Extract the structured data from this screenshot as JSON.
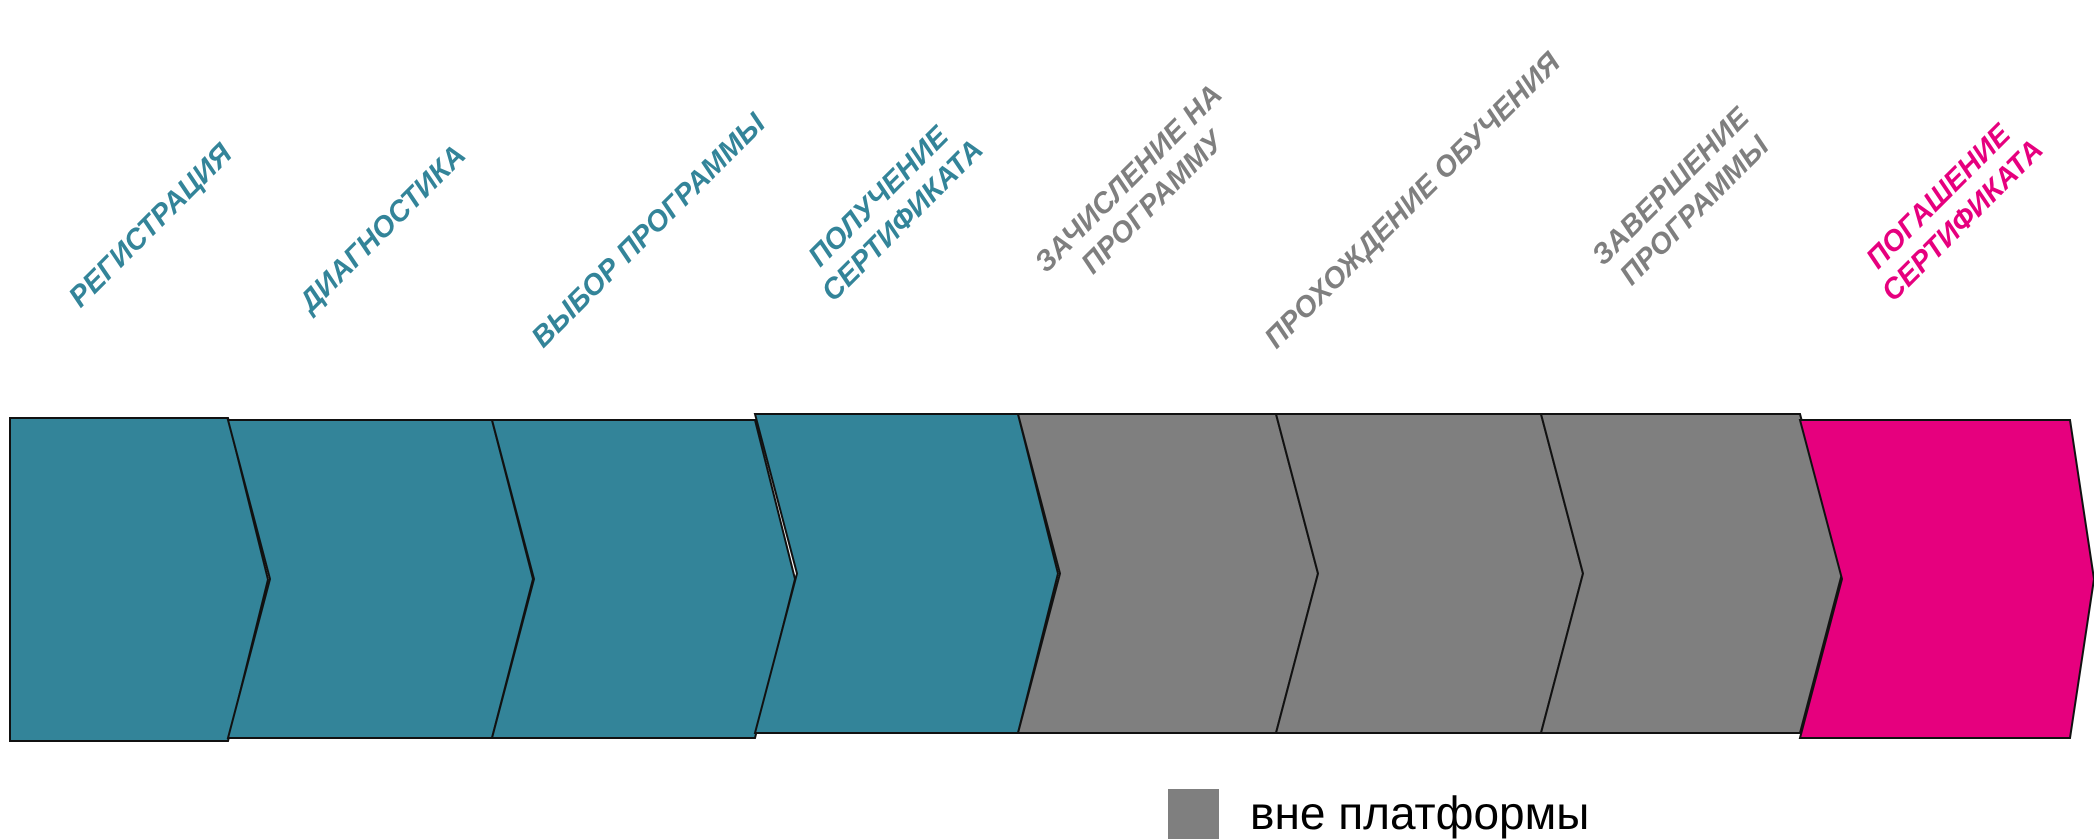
{
  "colors": {
    "teal": "#338499",
    "gray": "#7f7f7f",
    "magenta": "#e6007e",
    "outline": "#111111"
  },
  "steps": [
    {
      "label": "РЕГИСТРАЦИЯ",
      "lines": [
        "РЕГИСТРАЦИЯ"
      ],
      "color": "teal"
    },
    {
      "label": "ДИАГНОСТИКА",
      "lines": [
        "ДИАГНОСТИКА"
      ],
      "color": "teal"
    },
    {
      "label": "ВЫБОР ПРОГРАММЫ",
      "lines": [
        "ВЫБОР ПРОГРАММЫ"
      ],
      "color": "teal"
    },
    {
      "label": "ПОЛУЧЕНИЕ СЕРТИФИКАТА",
      "lines": [
        "ПОЛУЧЕНИЕ",
        "СЕРТИФИКАТА"
      ],
      "color": "teal"
    },
    {
      "label": "ЗАЧИСЛЕНИЕ НА ПРОГРАММУ",
      "lines": [
        "ЗАЧИСЛЕНИЕ НА",
        "ПРОГРАММУ"
      ],
      "color": "gray"
    },
    {
      "label": "ПРОХОЖДЕНИЕ ОБУЧЕНИЯ",
      "lines": [
        "ПРОХОЖДЕНИЕ ОБУЧЕНИЯ"
      ],
      "color": "gray"
    },
    {
      "label": "ЗАВЕРШЕНИЕ ПРОГРАММЫ",
      "lines": [
        "ЗАВЕРШЕНИЕ",
        "ПРОГРАММЫ"
      ],
      "color": "gray"
    },
    {
      "label": "ПОГАШЕНИЕ СЕРТИФИКАТА",
      "lines": [
        "ПОГАШЕНИЕ",
        "СЕРТИФИКАТА"
      ],
      "color": "magenta"
    }
  ],
  "legend": {
    "swatch_color": "gray",
    "text": "вне платформы"
  }
}
